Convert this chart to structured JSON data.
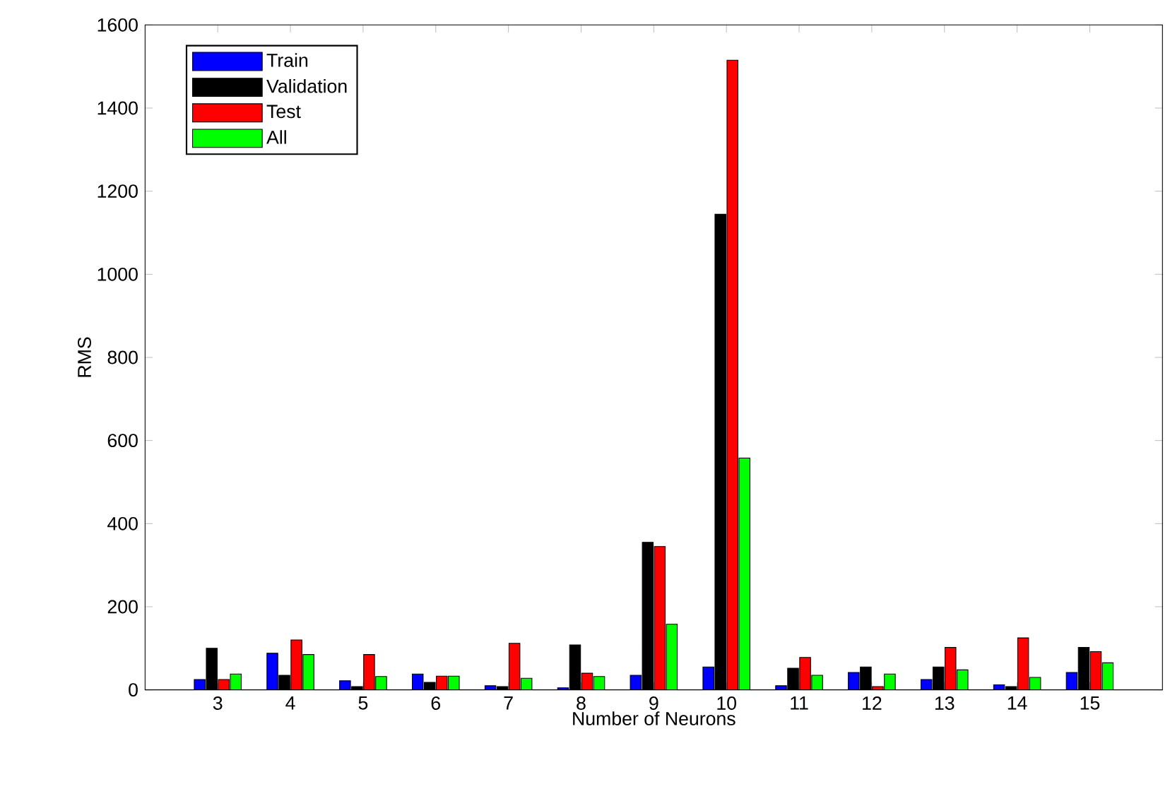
{
  "chart_data": {
    "type": "bar",
    "xlabel": "Number of Neurons",
    "ylabel": "RMS",
    "categories": [
      "3",
      "4",
      "5",
      "6",
      "7",
      "8",
      "9",
      "10",
      "11",
      "12",
      "13",
      "14",
      "15"
    ],
    "series": [
      {
        "name": "Train",
        "color": "#0000ff",
        "values": [
          25,
          88,
          22,
          38,
          10,
          5,
          35,
          55,
          10,
          42,
          25,
          12,
          42
        ]
      },
      {
        "name": "Validation",
        "color": "#000000",
        "values": [
          100,
          35,
          8,
          18,
          8,
          108,
          355,
          1145,
          52,
          55,
          55,
          8,
          102
        ]
      },
      {
        "name": "Test",
        "color": "#ff0000",
        "values": [
          25,
          120,
          85,
          33,
          112,
          40,
          345,
          1515,
          78,
          8,
          102,
          125,
          92
        ]
      },
      {
        "name": "All",
        "color": "#00ff00",
        "values": [
          38,
          85,
          32,
          33,
          28,
          32,
          158,
          558,
          35,
          38,
          48,
          30,
          65
        ]
      }
    ],
    "ylim": [
      0,
      1600
    ],
    "yticks": [
      0,
      200,
      400,
      600,
      800,
      1000,
      1200,
      1400,
      1600
    ],
    "grid": false,
    "legend": "top left"
  }
}
